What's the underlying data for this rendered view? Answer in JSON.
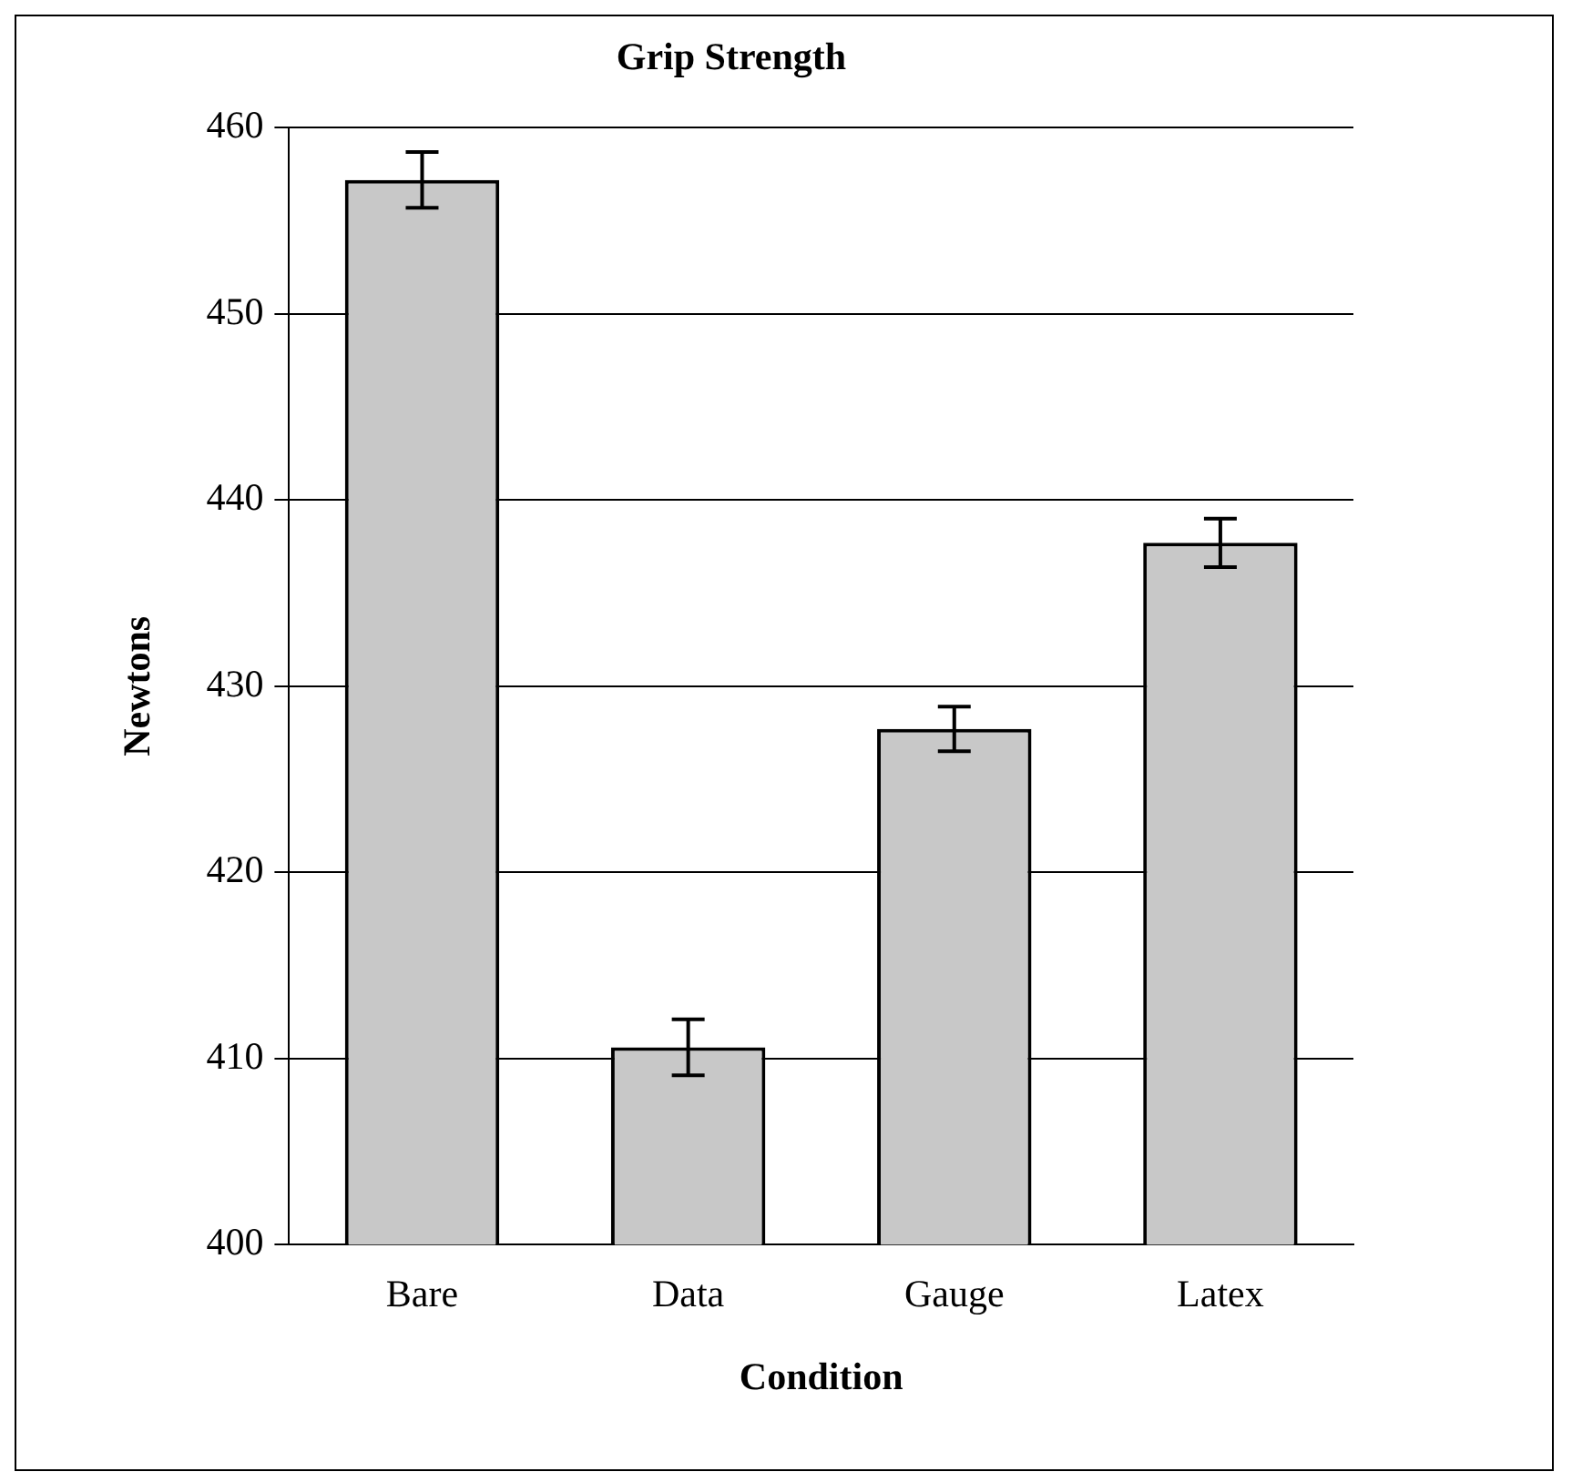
{
  "chart_data": {
    "type": "bar",
    "title": "Grip Strength",
    "xlabel": "Condition",
    "ylabel": "Newtons",
    "categories": [
      "Bare",
      "Data",
      "Gauge",
      "Latex"
    ],
    "values": [
      457.2,
      410.6,
      427.7,
      437.7
    ],
    "errors": [
      1.5,
      1.5,
      1.2,
      1.3
    ],
    "color": "#c8c8c8",
    "ylim": [
      400,
      460
    ],
    "yticks": [
      400,
      410,
      420,
      430,
      440,
      450,
      460
    ],
    "grid": "y",
    "legend": false
  }
}
